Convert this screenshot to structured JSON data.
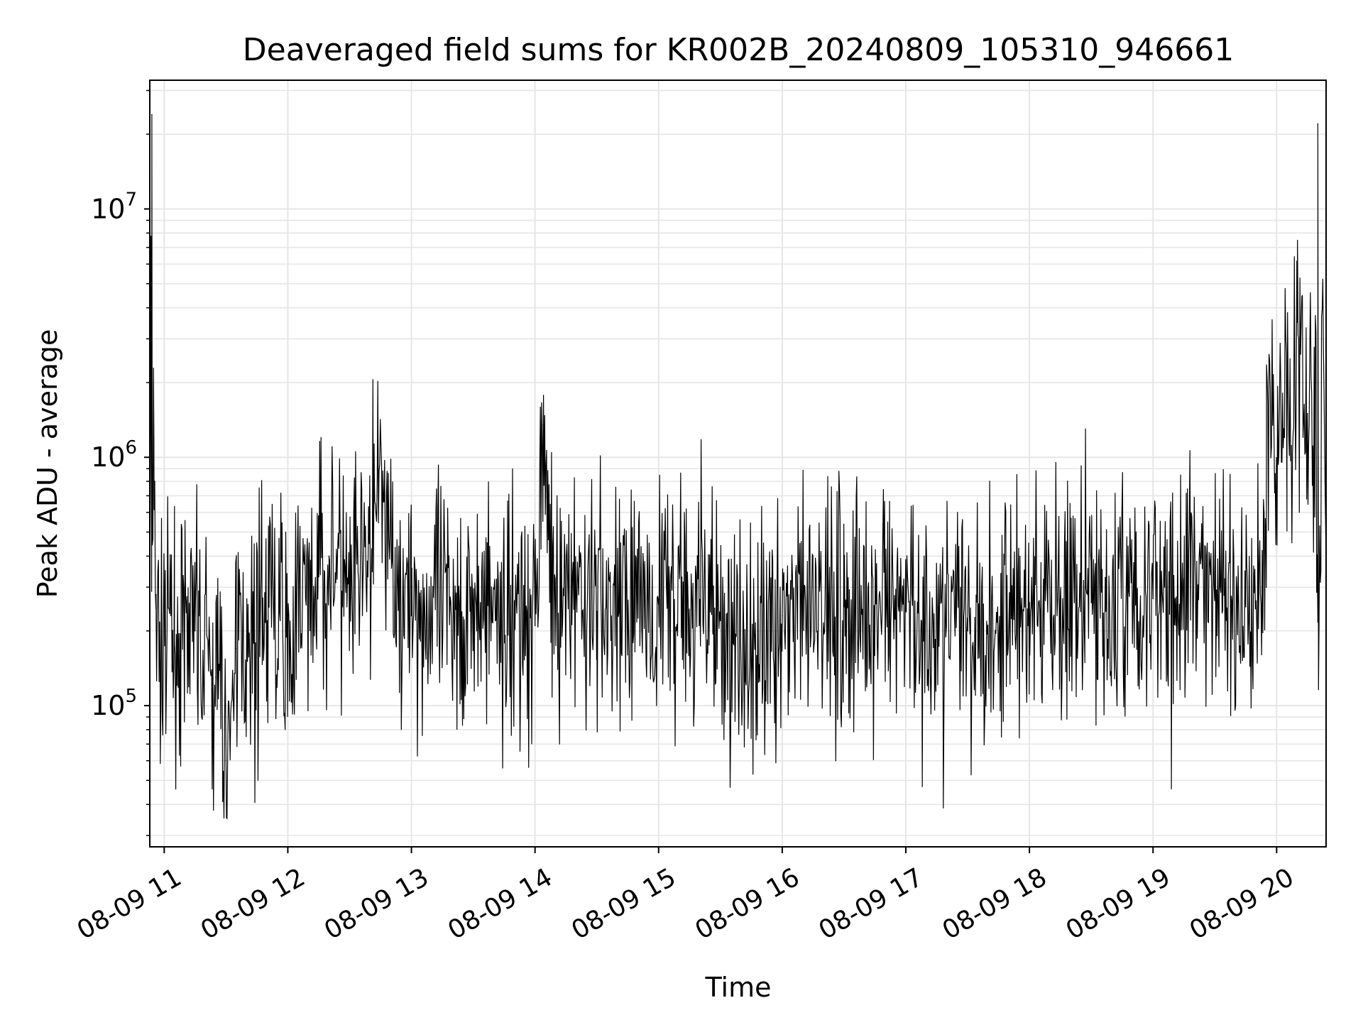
{
  "chart_data": {
    "type": "line",
    "title": "Deaveraged field sums for KR002B_20240809_105310_946661",
    "xlabel": "Time",
    "ylabel": "Peak ADU - average",
    "y_scale": "log",
    "ylim": [
      27000,
      33000000
    ],
    "xlim": [
      "2024-08-09 10:53",
      "2024-08-09 20:24"
    ],
    "grid": true,
    "x_tick_labels": [
      "08-09 11",
      "08-09 12",
      "08-09 13",
      "08-09 14",
      "08-09 15",
      "08-09 16",
      "08-09 17",
      "08-09 18",
      "08-09 19",
      "08-09 20"
    ],
    "x_ticks": [
      "2024-08-09 11:00",
      "2024-08-09 12:00",
      "2024-08-09 13:00",
      "2024-08-09 14:00",
      "2024-08-09 15:00",
      "2024-08-09 16:00",
      "2024-08-09 17:00",
      "2024-08-09 18:00",
      "2024-08-09 19:00",
      "2024-08-09 20:00"
    ],
    "y_ticks": [
      {
        "base": "10",
        "exp": "5",
        "value": 100000
      },
      {
        "base": "10",
        "exp": "6",
        "value": 1000000
      },
      {
        "base": "10",
        "exp": "7",
        "value": 10000000
      }
    ],
    "line_color": "#000000",
    "series": [
      {
        "x": [
          "2024-08-09 10:53",
          "2024-08-09 10:54",
          "2024-08-09 10:55",
          "2024-08-09 10:56",
          "2024-08-09 10:58",
          "2024-08-09 11:05",
          "2024-08-09 11:15",
          "2024-08-09 11:25",
          "2024-08-09 11:30",
          "2024-08-09 11:35",
          "2024-08-09 11:40",
          "2024-08-09 11:50",
          "2024-08-09 12:00",
          "2024-08-09 12:15",
          "2024-08-09 12:20",
          "2024-08-09 12:30",
          "2024-08-09 12:40",
          "2024-08-09 12:42",
          "2024-08-09 13:00",
          "2024-08-09 13:30",
          "2024-08-09 14:00",
          "2024-08-09 14:04",
          "2024-08-09 14:10",
          "2024-08-09 14:30",
          "2024-08-09 15:00",
          "2024-08-09 15:30",
          "2024-08-09 15:45",
          "2024-08-09 16:00",
          "2024-08-09 16:30",
          "2024-08-09 17:00",
          "2024-08-09 17:30",
          "2024-08-09 18:00",
          "2024-08-09 18:30",
          "2024-08-09 19:00",
          "2024-08-09 19:15",
          "2024-08-09 19:30",
          "2024-08-09 19:45",
          "2024-08-09 19:55",
          "2024-08-09 20:00",
          "2024-08-09 20:05",
          "2024-08-09 20:10",
          "2024-08-09 20:15",
          "2024-08-09 20:18",
          "2024-08-09 20:20",
          "2024-08-09 20:24"
        ],
        "values": [
          250000,
          24000000,
          1200000,
          280000,
          150000,
          180000,
          200000,
          130000,
          60000,
          170000,
          190000,
          220000,
          200000,
          330000,
          400000,
          260000,
          320000,
          850000,
          230000,
          250000,
          210000,
          1350000,
          230000,
          240000,
          270000,
          220000,
          130000,
          230000,
          250000,
          240000,
          200000,
          260000,
          260000,
          270000,
          320000,
          280000,
          250000,
          300000,
          700000,
          900000,
          3500000,
          1500000,
          700000,
          22000000,
          600000
        ]
      }
    ]
  }
}
